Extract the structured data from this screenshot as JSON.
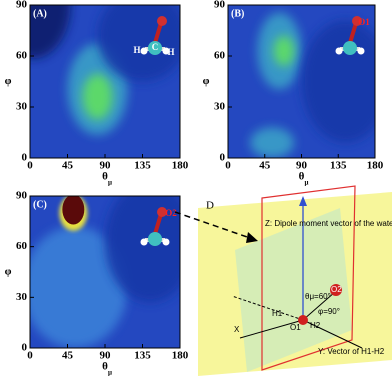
{
  "chart_data": [
    {
      "type": "heatmap",
      "panel_label": "(A)",
      "x_label": "θ",
      "x_label_sub": "μ",
      "y_label": "φ",
      "xlim": [
        0,
        180
      ],
      "xticks": [
        0,
        45,
        90,
        135,
        180
      ],
      "ylim": [
        0,
        90
      ],
      "yticks": [
        0,
        30,
        60,
        90
      ],
      "annotations": [
        "H",
        "C",
        "H"
      ]
    },
    {
      "type": "heatmap",
      "panel_label": "(B)",
      "x_label": "θ",
      "x_label_sub": "μ",
      "y_label": "φ",
      "xlim": [
        0,
        180
      ],
      "xticks": [
        0,
        45,
        90,
        135,
        180
      ],
      "ylim": [
        0,
        90
      ],
      "yticks": [
        0,
        30,
        60,
        90
      ],
      "annotations": [
        "O1"
      ]
    },
    {
      "type": "heatmap",
      "panel_label": "(C)",
      "x_label": "θ",
      "x_label_sub": "μ",
      "y_label": "φ",
      "xlim": [
        0,
        180
      ],
      "xticks": [
        0,
        45,
        90,
        135,
        180
      ],
      "ylim": [
        0,
        90
      ],
      "yticks": [
        0,
        30,
        60,
        90
      ],
      "annotations": [
        "O2"
      ]
    }
  ],
  "diagram": {
    "panel_label": "D",
    "z_label": "Z: Dipole moment vector of the water",
    "y_label": "Y: Vector of H1-H2",
    "x_label": "X",
    "theta_label": "θμ=60°",
    "phi_label": "φ=90°",
    "o1_label": "O1",
    "o2_label": "O2",
    "h1_label": "H1",
    "h2_label": "H2"
  }
}
